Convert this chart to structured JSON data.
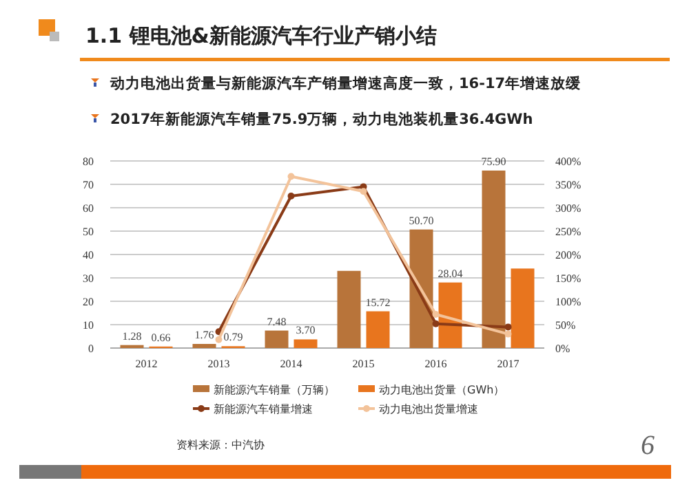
{
  "chart_data": {
    "type": "bar",
    "title": "1.1 锂电池&新能源汽车行业产销小结",
    "subtitle": "动力电池出货量与新能源汽车产销量增速高度一致，16-17年增速放缓",
    "annotations": [
      "2017年新能源汽车销量75.9万辆，动力电池装机量36.4GWh",
      "资料来源：中汽协",
      "6"
    ],
    "categories": [
      "2012",
      "2013",
      "2014",
      "2015",
      "2016",
      "2017"
    ],
    "series": [
      {
        "name": "新能源汽车销量（万辆）",
        "color": "#b8743a",
        "values": [
          1.28,
          1.76,
          7.48,
          33,
          50.7,
          75.9
        ],
        "value_labels": [
          "1.28",
          "1.76",
          "7.48",
          null,
          "50.70",
          "75.90"
        ]
      },
      {
        "name": "动力电池出货量（GWh）",
        "color": "#e8751e",
        "values": [
          0.66,
          0.79,
          3.7,
          15.72,
          28.04,
          34
        ],
        "value_labels": [
          "0.66",
          "0.79",
          "3.70",
          "15.72",
          "28.04",
          null
        ]
      },
      {
        "name": "新能源汽车销量增速",
        "type": "line",
        "axis": "y2",
        "color": "#8a3b17",
        "values": [
          null,
          35,
          325,
          345,
          52,
          45
        ]
      },
      {
        "name": "动力电池出货量增速",
        "type": "line",
        "axis": "y2",
        "color": "#f3c39a",
        "values": [
          null,
          18,
          367,
          335,
          72,
          30
        ]
      }
    ],
    "ylim": [
      0,
      80
    ],
    "yticks": [
      0,
      10,
      20,
      30,
      40,
      50,
      60,
      70,
      80
    ],
    "y2lim": [
      0,
      400
    ],
    "y2ticks": [
      {
        "value": 0,
        "label": "0%"
      },
      {
        "value": 50,
        "label": "50%"
      },
      {
        "value": 100,
        "label": "100%"
      },
      {
        "value": 150,
        "label": "150%"
      },
      {
        "value": 200,
        "label": "200%"
      },
      {
        "value": 250,
        "label": "250%"
      },
      {
        "value": 300,
        "label": "300%"
      },
      {
        "value": 350,
        "label": "350%"
      },
      {
        "value": 400,
        "label": "400%"
      }
    ],
    "grid": "y",
    "legend": "bottom",
    "marker": "circle",
    "line_style": "solid"
  }
}
